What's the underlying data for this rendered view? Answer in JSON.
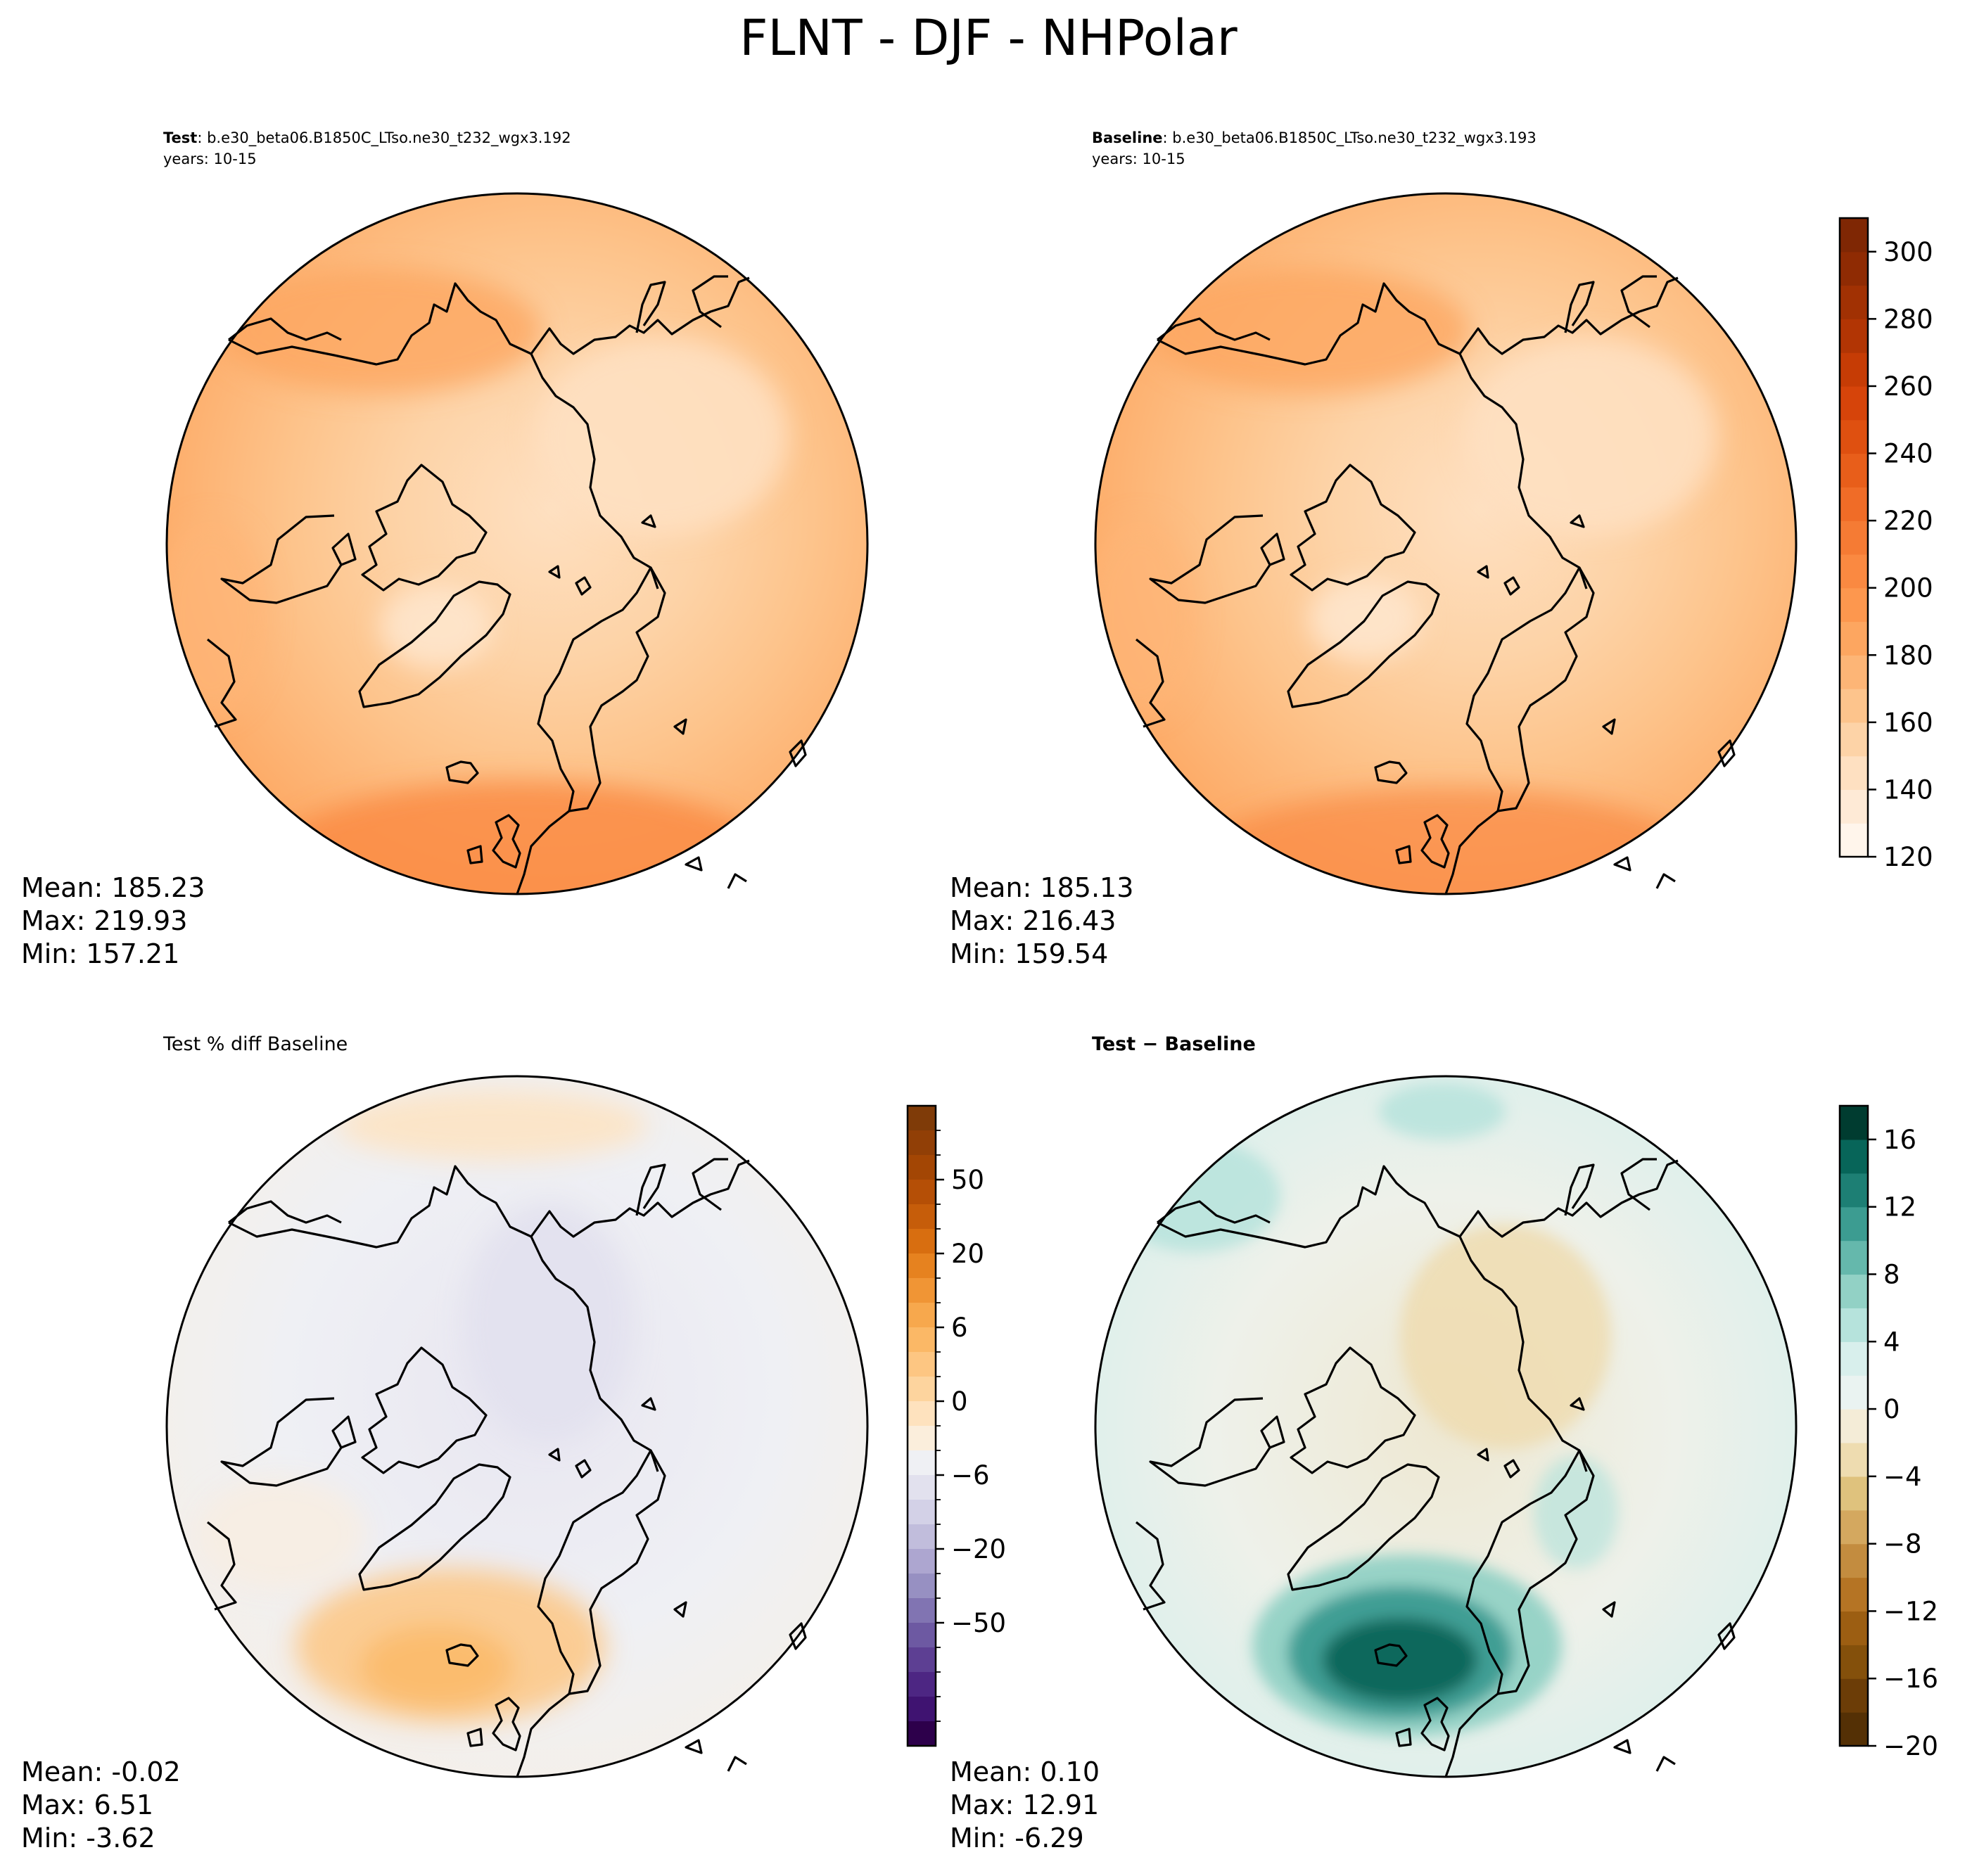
{
  "figure_title": "FLNT - DJF - NHPolar",
  "chart_data": [
    {
      "type": "heatmap",
      "panel": "test",
      "title_bold": "Test",
      "title_rest": ": b.e30_beta06.B1850C_LTso.ne30_t232_wgx3.192",
      "years": "years: 10-15",
      "projection": "north-polar-stereographic",
      "stats": {
        "mean": "Mean: 185.23",
        "max": "Max: 219.93",
        "min": "Min: 157.21"
      }
    },
    {
      "type": "heatmap",
      "panel": "baseline",
      "title_bold": "Baseline",
      "title_rest": ": b.e30_beta06.B1850C_LTso.ne30_t232_wgx3.193",
      "years": "years: 10-15",
      "projection": "north-polar-stereographic",
      "stats": {
        "mean": "Mean: 185.13",
        "max": "Max: 216.43",
        "min": "Min: 159.54"
      },
      "colorbar": {
        "range": [
          120,
          310
        ],
        "ticks": [
          "120",
          "140",
          "160",
          "180",
          "200",
          "220",
          "240",
          "260",
          "280",
          "300"
        ],
        "tick_values": [
          120,
          140,
          160,
          180,
          200,
          220,
          240,
          260,
          280,
          300
        ],
        "levels": [
          120,
          130,
          140,
          150,
          160,
          170,
          180,
          190,
          200,
          210,
          220,
          230,
          240,
          250,
          260,
          270,
          280,
          290,
          300,
          310
        ],
        "colors": [
          "#fff5eb",
          "#feead6",
          "#fee0c1",
          "#fdd3a7",
          "#fdc48c",
          "#fdb576",
          "#fda660",
          "#fd974e",
          "#fa8941",
          "#f57b34",
          "#f06c27",
          "#e85e1a",
          "#df5010",
          "#d6440a",
          "#c63c05",
          "#b23504",
          "#a13103",
          "#8f2b03",
          "#7f2704"
        ]
      }
    },
    {
      "type": "heatmap",
      "panel": "percent-diff",
      "title_bold": "",
      "title_rest": "Test % diff Baseline",
      "projection": "north-polar-stereographic",
      "stats": {
        "mean": "Mean: -0.02",
        "max": "Max:  6.51",
        "min": "Min: -3.62"
      },
      "colorbar": {
        "ticks": [
          "50",
          "20",
          "6",
          "0",
          "−6",
          "−20",
          "−50"
        ],
        "tick_boundary_index": [
          3,
          6,
          9,
          12,
          15,
          18,
          21
        ],
        "colors_top_to_bottom": [
          "#7f3b08",
          "#913f06",
          "#a34604",
          "#b54f06",
          "#c65d0a",
          "#d86e10",
          "#e6821f",
          "#f09535",
          "#f7a84d",
          "#fbb866",
          "#fdc682",
          "#fdd49e",
          "#fee2be",
          "#fbeedc",
          "#eff0f4",
          "#e2e1ee",
          "#d3d1e7",
          "#c1bddc",
          "#ada6d0",
          "#9790c2",
          "#8174b2",
          "#6d59a2",
          "#5d3f93",
          "#4d2683",
          "#3f1371",
          "#2d004b"
        ]
      }
    },
    {
      "type": "heatmap",
      "panel": "difference",
      "title_bold": "Test − Baseline",
      "title_rest": "",
      "projection": "north-polar-stereographic",
      "stats": {
        "mean": "Mean:  0.10",
        "max": "Max: 12.91",
        "min": "Min: -6.29"
      },
      "colorbar": {
        "range": [
          -20,
          18
        ],
        "ticks": [
          "−20",
          "−16",
          "−12",
          "−8",
          "−4",
          "0",
          "4",
          "8",
          "12",
          "16"
        ],
        "tick_values": [
          -20,
          -16,
          -12,
          -8,
          -4,
          0,
          4,
          8,
          12,
          16
        ],
        "levels": [
          -20,
          -18,
          -16,
          -14,
          -12,
          -10,
          -8,
          -6,
          -4,
          -2,
          0,
          2,
          4,
          6,
          8,
          10,
          12,
          14,
          16,
          18
        ],
        "colors": [
          "#543005",
          "#6c3d07",
          "#84500b",
          "#9c5e12",
          "#b57424",
          "#c38c3f",
          "#d4a85f",
          "#dfc27d",
          "#eedcb0",
          "#f4ecd7",
          "#eaf3f1",
          "#d8efec",
          "#b6e3dc",
          "#92d1c5",
          "#65b8ac",
          "#3c9c91",
          "#1d7f74",
          "#076559",
          "#003c30"
        ]
      }
    }
  ]
}
